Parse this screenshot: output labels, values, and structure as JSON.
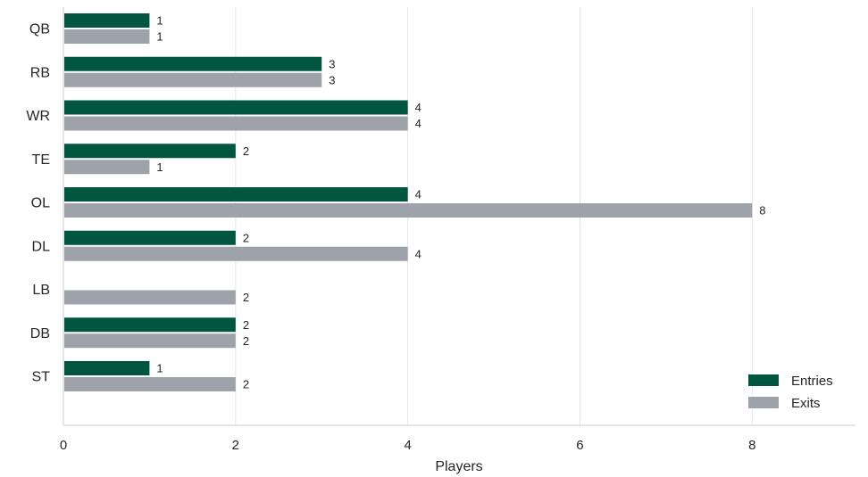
{
  "chart_data": {
    "type": "bar",
    "orientation": "horizontal",
    "categories": [
      "QB",
      "RB",
      "WR",
      "TE",
      "OL",
      "DL",
      "LB",
      "DB",
      "ST"
    ],
    "series": [
      {
        "name": "Entries",
        "color": "#00563f",
        "values": [
          1,
          3,
          4,
          2,
          4,
          2,
          0,
          2,
          1
        ]
      },
      {
        "name": "Exits",
        "color": "#9ea2ab",
        "values": [
          1,
          3,
          4,
          1,
          8,
          4,
          2,
          2,
          2
        ]
      }
    ],
    "xlabel": "Players",
    "ylabel": "",
    "xlim": [
      0,
      9.2
    ],
    "xticks": [
      0,
      2,
      4,
      6,
      8
    ],
    "grid": "vertical",
    "legend": "bottom-right",
    "data_labels": true
  }
}
